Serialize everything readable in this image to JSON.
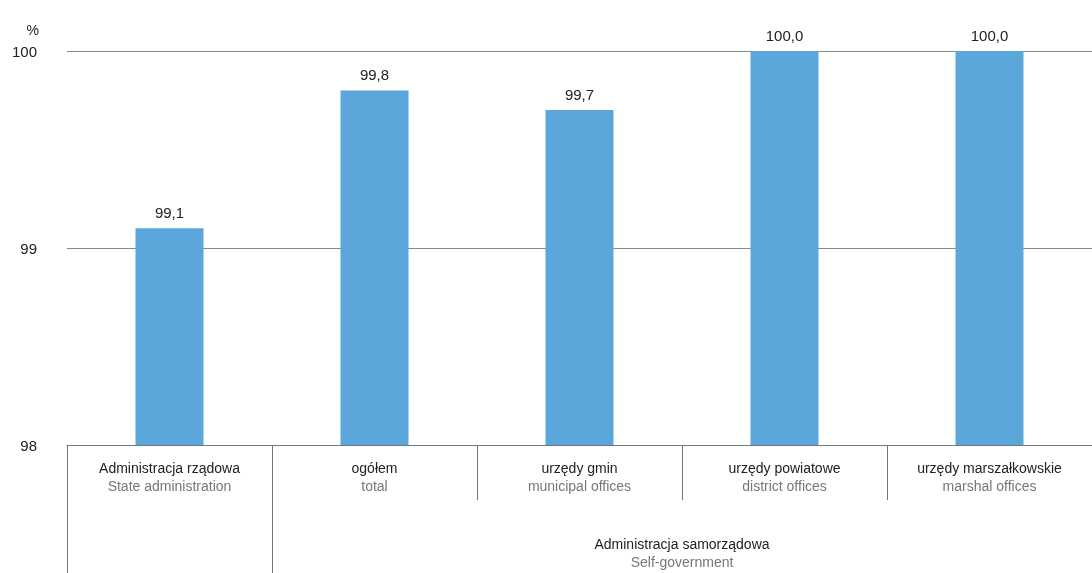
{
  "chart_data": {
    "type": "bar",
    "ylabel": "%",
    "categories": [
      "Administracja rządowa\nState administration",
      "ogółem\ntotal",
      "urzędy gmin\nmunicipal offices",
      "urzędy powiatowe\ndistrict offices",
      "urzędy marszałkowskie\nmarshal offices"
    ],
    "values": [
      99.1,
      99.8,
      99.7,
      100.0,
      100.0
    ],
    "value_labels": [
      "99,1",
      "99,8",
      "99,7",
      "100,0",
      "100,0"
    ],
    "color": "#5ba7dc",
    "ylim": [
      98,
      100
    ],
    "yticks": [
      98,
      99,
      100
    ],
    "grid": "y",
    "annotations": [
      "Administracja samorządowa\nSelf-government"
    ]
  }
}
